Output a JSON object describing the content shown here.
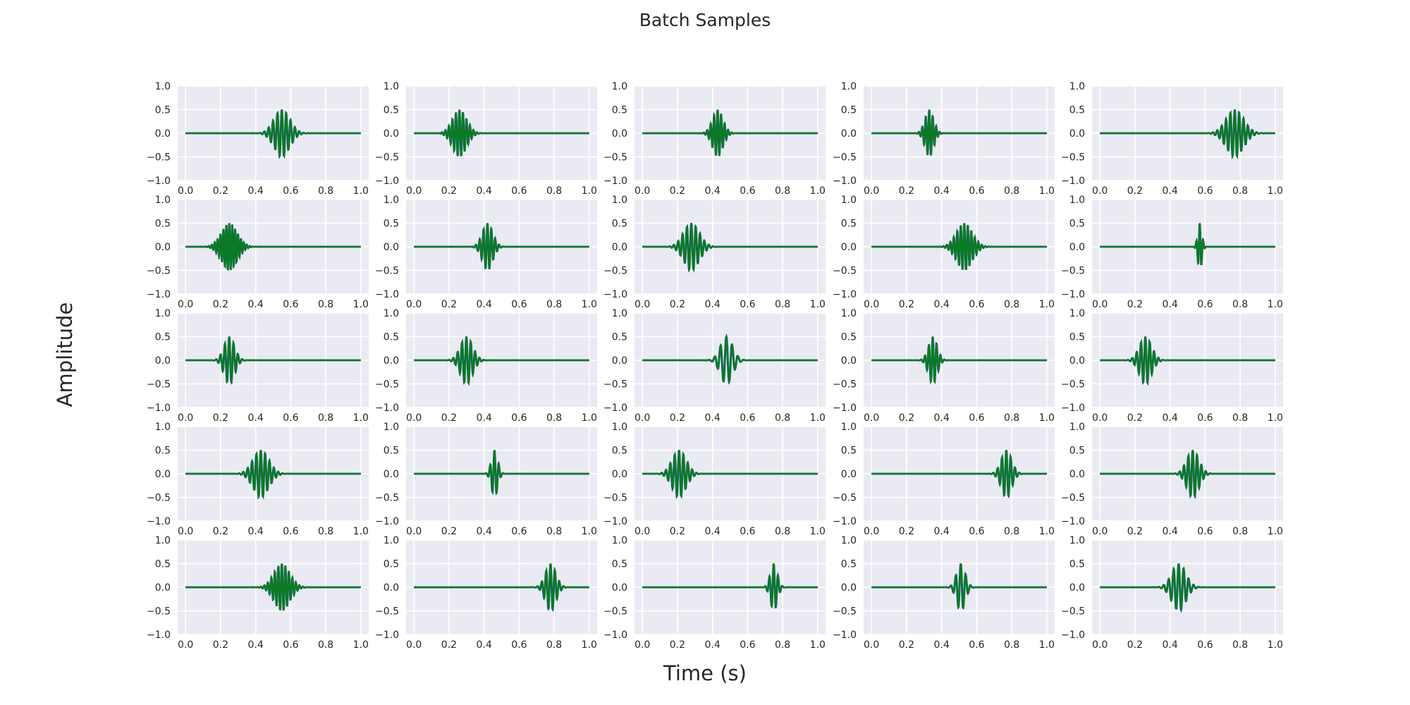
{
  "figure": {
    "title": "Batch Samples",
    "xlabel": "Time (s)",
    "ylabel": "Amplitude"
  },
  "colors": {
    "axes_background": "#eaeaf2",
    "grid": "#ffffff",
    "tick_text": "#262626",
    "signal_blue": "#0a1fd0",
    "signal_green": "#0b7a24"
  },
  "chart_data": {
    "type": "line",
    "layout": "grid of 5 rows x 5 columns, shared axes",
    "xlim": [
      0.0,
      1.0
    ],
    "ylim": [
      -1.0,
      1.0
    ],
    "x_ticks": [
      "0.0",
      "0.2",
      "0.4",
      "0.6",
      "0.8",
      "1.0"
    ],
    "y_ticks": [
      "1.0",
      "0.5",
      "0.0",
      "−0.5",
      "−1.0"
    ],
    "grid": true,
    "signal": "gaussian-windowed sinusoid burst, peak amplitude 0.5, zero elsewhere; two overlaid traces (blue and green) per panel",
    "panels": [
      {
        "center": 0.55,
        "width": 0.045,
        "freq": 40
      },
      {
        "center": 0.26,
        "width": 0.04,
        "freq": 50
      },
      {
        "center": 0.43,
        "width": 0.03,
        "freq": 50
      },
      {
        "center": 0.33,
        "width": 0.025,
        "freq": 50
      },
      {
        "center": 0.77,
        "width": 0.05,
        "freq": 40
      },
      {
        "center": 0.25,
        "width": 0.045,
        "freq": 60
      },
      {
        "center": 0.42,
        "width": 0.03,
        "freq": 45
      },
      {
        "center": 0.28,
        "width": 0.045,
        "freq": 40
      },
      {
        "center": 0.53,
        "width": 0.045,
        "freq": 50
      },
      {
        "center": 0.57,
        "width": 0.012,
        "freq": 50
      },
      {
        "center": 0.25,
        "width": 0.03,
        "freq": 40
      },
      {
        "center": 0.3,
        "width": 0.035,
        "freq": 40
      },
      {
        "center": 0.48,
        "width": 0.035,
        "freq": 30
      },
      {
        "center": 0.35,
        "width": 0.025,
        "freq": 45
      },
      {
        "center": 0.26,
        "width": 0.035,
        "freq": 40
      },
      {
        "center": 0.43,
        "width": 0.045,
        "freq": 40
      },
      {
        "center": 0.46,
        "width": 0.018,
        "freq": 40
      },
      {
        "center": 0.21,
        "width": 0.04,
        "freq": 40
      },
      {
        "center": 0.77,
        "width": 0.03,
        "freq": 40
      },
      {
        "center": 0.53,
        "width": 0.035,
        "freq": 40
      },
      {
        "center": 0.55,
        "width": 0.045,
        "freq": 50
      },
      {
        "center": 0.78,
        "width": 0.03,
        "freq": 40
      },
      {
        "center": 0.75,
        "width": 0.02,
        "freq": 40
      },
      {
        "center": 0.51,
        "width": 0.025,
        "freq": 35
      },
      {
        "center": 0.45,
        "width": 0.04,
        "freq": 35
      }
    ]
  }
}
